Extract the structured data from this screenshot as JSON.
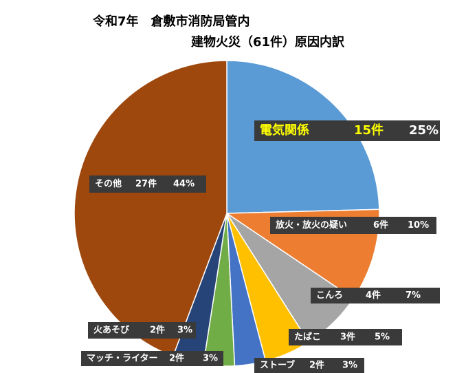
{
  "chart_data": {
    "type": "pie",
    "title": "令和7年　倉敷市消防局管内",
    "subtitle": "建物火災（61件）原因内訳",
    "categories": [
      "電気関係",
      "放火・放火の疑い",
      "こんろ",
      "たばこ",
      "ストーブ",
      "マッチ・ライター",
      "火あそび",
      "その他"
    ],
    "values": [
      15,
      6,
      4,
      3,
      2,
      2,
      2,
      27
    ],
    "value_labels": [
      "15件",
      "6件",
      "4件",
      "3件",
      "2件",
      "2件",
      "2件",
      "27件"
    ],
    "percents": [
      25,
      10,
      7,
      5,
      3,
      3,
      3,
      44
    ],
    "percent_labels": [
      "25%",
      "10%",
      "7%",
      "5%",
      "3%",
      "3%",
      "3%",
      "44%"
    ],
    "colors": [
      "#5b9bd5",
      "#ed7d31",
      "#a5a5a5",
      "#ffc000",
      "#4472c4",
      "#70ad47",
      "#264478",
      "#9e480e"
    ]
  }
}
